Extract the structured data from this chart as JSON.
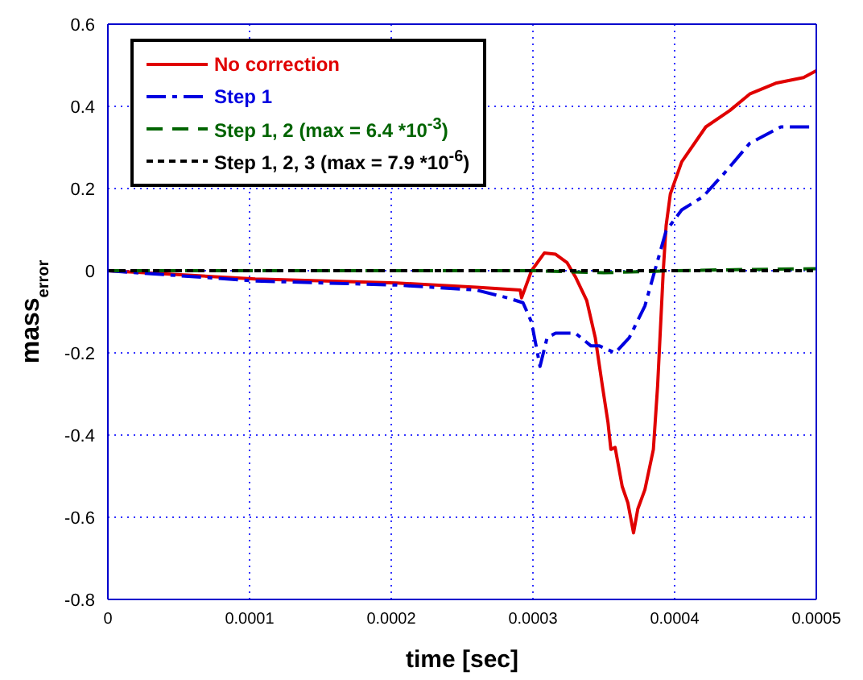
{
  "chart_data": {
    "type": "line",
    "xlabel": "time [sec]",
    "ylabel": "mass$_{error}$",
    "xlim": [
      0,
      0.0005
    ],
    "xticks": [
      0,
      0.0001,
      0.0002,
      0.0003,
      0.0004,
      0.0005
    ],
    "ylim": [
      -0.8,
      0.6
    ],
    "yticks": [
      -0.8,
      -0.6,
      -0.4,
      -0.2,
      0,
      0.2,
      0.4,
      0.6
    ],
    "grid": true,
    "legend": "top left",
    "marker": "none",
    "series": [
      {
        "name": "No correction",
        "color": "#e00000",
        "line_style": "solid",
        "x": [
          0,
          0.000104,
          0.000204,
          0.00026,
          0.000291,
          0.000292,
          0.000299,
          0.000308,
          0.000316,
          0.000324,
          0.00033,
          0.000338,
          0.000344,
          0.000349,
          0.000353,
          0.000355,
          0.000358,
          0.000363,
          0.000367,
          0.000371,
          0.000374,
          0.000379,
          0.000385,
          0.000388,
          0.000392,
          0.000394,
          0.000397,
          0.000405,
          0.000422,
          0.000439,
          0.000453,
          0.000472,
          0.000491,
          0.0005
        ],
        "values": [
          0,
          -0.02,
          -0.03,
          -0.04,
          -0.047,
          -0.066,
          0,
          0.043,
          0.04,
          0.02,
          -0.015,
          -0.073,
          -0.163,
          -0.28,
          -0.37,
          -0.435,
          -0.43,
          -0.525,
          -0.565,
          -0.638,
          -0.58,
          -0.533,
          -0.435,
          -0.28,
          0,
          0.11,
          0.187,
          0.265,
          0.35,
          0.39,
          0.43,
          0.457,
          0.47,
          0.487
        ]
      },
      {
        "name": "Step 1",
        "color": "#0000e0",
        "line_style": "dashdot",
        "x": [
          0,
          0.000104,
          0.000204,
          0.00026,
          0.000282,
          0.000293,
          0.000299,
          0.000305,
          0.00031,
          0.000316,
          0.00033,
          0.000341,
          0.000347,
          0.000358,
          0.000368,
          0.000379,
          0.000386,
          0.000394,
          0.000405,
          0.00042,
          0.000435,
          0.000453,
          0.000475,
          0.0005
        ],
        "values": [
          0,
          -0.025,
          -0.035,
          -0.047,
          -0.066,
          -0.078,
          -0.125,
          -0.233,
          -0.163,
          -0.152,
          -0.152,
          -0.183,
          -0.183,
          -0.2,
          -0.163,
          -0.086,
          0,
          0.097,
          0.148,
          0.18,
          0.237,
          0.31,
          0.35,
          0.35
        ]
      },
      {
        "name": "Step 1, 2 (max = 6.4 *10$^{-3}$)",
        "color": "#006400",
        "line_style": "dashed",
        "x": [
          0,
          0.0003,
          0.00035,
          0.0004,
          0.00045,
          0.0005
        ],
        "values": [
          0,
          0,
          -0.005,
          0,
          0.003,
          0.005
        ]
      },
      {
        "name": "Step 1, 2, 3 (max = 7.9 *10$^{-6}$)",
        "color": "#000000",
        "line_style": "dotted",
        "x": [
          0,
          0.0005
        ],
        "values": [
          0,
          0
        ]
      }
    ]
  }
}
